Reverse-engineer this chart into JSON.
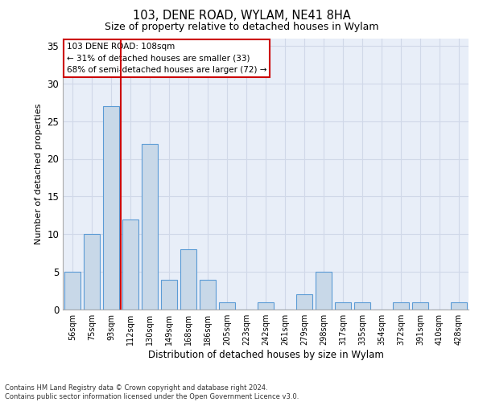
{
  "title1": "103, DENE ROAD, WYLAM, NE41 8HA",
  "title2": "Size of property relative to detached houses in Wylam",
  "xlabel": "Distribution of detached houses by size in Wylam",
  "ylabel": "Number of detached properties",
  "categories": [
    "56sqm",
    "75sqm",
    "93sqm",
    "112sqm",
    "130sqm",
    "149sqm",
    "168sqm",
    "186sqm",
    "205sqm",
    "223sqm",
    "242sqm",
    "261sqm",
    "279sqm",
    "298sqm",
    "317sqm",
    "335sqm",
    "354sqm",
    "372sqm",
    "391sqm",
    "410sqm",
    "428sqm"
  ],
  "values": [
    5,
    10,
    27,
    12,
    22,
    4,
    8,
    4,
    1,
    0,
    1,
    0,
    2,
    5,
    1,
    1,
    0,
    1,
    1,
    0,
    1
  ],
  "bar_color": "#c8d8e8",
  "bar_edge_color": "#5b9bd5",
  "bar_width": 0.8,
  "vline_x_index": 2.5,
  "vline_color": "#cc0000",
  "annotation_text": "103 DENE ROAD: 108sqm\n← 31% of detached houses are smaller (33)\n68% of semi-detached houses are larger (72) →",
  "annotation_box_color": "#cc0000",
  "ylim": [
    0,
    36
  ],
  "yticks": [
    0,
    5,
    10,
    15,
    20,
    25,
    30,
    35
  ],
  "grid_color": "#d0d8e8",
  "background_color": "#e8eef8",
  "footnote": "Contains HM Land Registry data © Crown copyright and database right 2024.\nContains public sector information licensed under the Open Government Licence v3.0."
}
